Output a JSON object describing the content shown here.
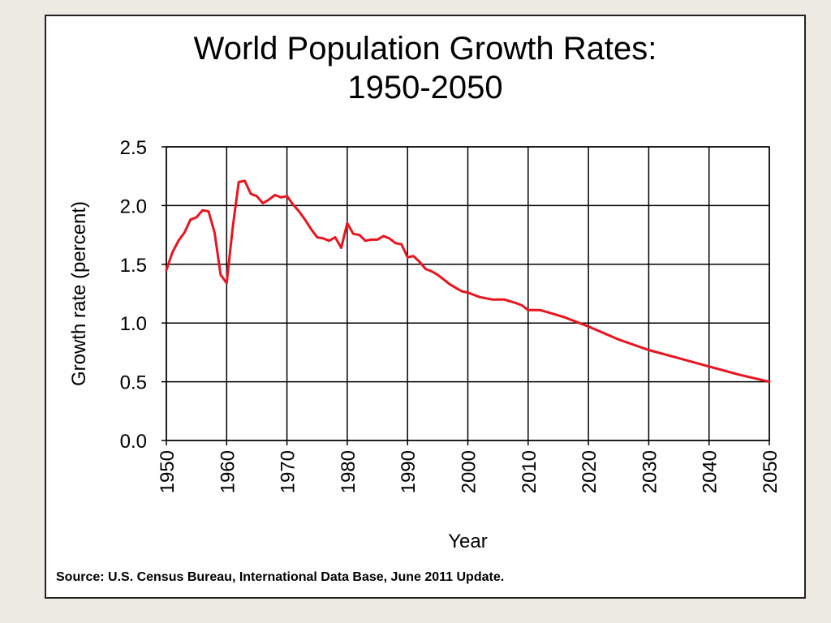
{
  "chart_data": {
    "type": "line",
    "title": "World Population Growth Rates: 1950-2050",
    "title_lines": [
      "World Population Growth Rates:",
      "1950-2050"
    ],
    "xlabel": "Year",
    "ylabel": "Growth rate  (percent)",
    "xlim": [
      1950,
      2050
    ],
    "ylim": [
      0,
      2.5
    ],
    "x_ticks": [
      1950,
      1960,
      1970,
      1980,
      1990,
      2000,
      2010,
      2020,
      2030,
      2040,
      2050
    ],
    "x_tick_labels": [
      "1950",
      "1960",
      "1970",
      "1980",
      "1990",
      "2000",
      "2010",
      "2020",
      "2030",
      "2040",
      "2050"
    ],
    "y_ticks": [
      0,
      0.5,
      1.0,
      1.5,
      2.0,
      2.5
    ],
    "y_tick_labels": [
      "0.0",
      "0.5",
      "1.0",
      "1.5",
      "2.0",
      "2.5"
    ],
    "grid": true,
    "legend": "none",
    "series": [
      {
        "color": "#e8141e",
        "x": [
          1950,
          1951,
          1952,
          1953,
          1954,
          1955,
          1956,
          1957,
          1958,
          1959,
          1960,
          1961,
          1962,
          1963,
          1964,
          1965,
          1966,
          1967,
          1968,
          1969,
          1970,
          1971,
          1972,
          1973,
          1974,
          1975,
          1976,
          1977,
          1978,
          1979,
          1980,
          1981,
          1982,
          1983,
          1984,
          1985,
          1986,
          1987,
          1988,
          1989,
          1990,
          1991,
          1992,
          1993,
          1994,
          1995,
          1996,
          1997,
          1998,
          1999,
          2000,
          2002,
          2004,
          2006,
          2008,
          2009,
          2010,
          2012,
          2014,
          2016,
          2018,
          2020,
          2025,
          2030,
          2035,
          2040,
          2045,
          2050
        ],
        "values": [
          1.45,
          1.6,
          1.7,
          1.77,
          1.88,
          1.9,
          1.96,
          1.95,
          1.77,
          1.41,
          1.34,
          1.81,
          2.2,
          2.21,
          2.1,
          2.08,
          2.02,
          2.05,
          2.09,
          2.07,
          2.08,
          2.01,
          1.95,
          1.88,
          1.8,
          1.73,
          1.72,
          1.7,
          1.73,
          1.64,
          1.85,
          1.76,
          1.75,
          1.7,
          1.71,
          1.71,
          1.74,
          1.72,
          1.68,
          1.67,
          1.56,
          1.57,
          1.52,
          1.46,
          1.44,
          1.41,
          1.37,
          1.33,
          1.3,
          1.27,
          1.26,
          1.22,
          1.2,
          1.2,
          1.17,
          1.15,
          1.11,
          1.11,
          1.08,
          1.05,
          1.01,
          0.97,
          0.86,
          0.77,
          0.7,
          0.63,
          0.56,
          0.5
        ]
      }
    ]
  },
  "source_note": "Source: U.S. Census Bureau, International Data Base, June 2011 Update."
}
